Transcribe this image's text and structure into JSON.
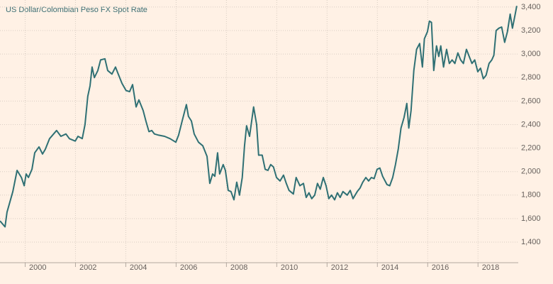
{
  "chart_data": {
    "type": "line",
    "title": "US Dollar/Colombian Peso FX Spot Rate",
    "x": [
      1999.0,
      1999.2,
      1999.28,
      1999.51,
      1999.68,
      1999.85,
      1999.96,
      2000.04,
      2000.13,
      2000.27,
      2000.38,
      2000.55,
      2000.69,
      2000.8,
      2000.97,
      2001.25,
      2001.42,
      2001.62,
      2001.76,
      2001.99,
      2002.1,
      2002.27,
      2002.38,
      2002.49,
      2002.58,
      2002.66,
      2002.75,
      2002.89,
      2003.0,
      2003.17,
      2003.28,
      2003.45,
      2003.59,
      2003.68,
      2003.85,
      2004.01,
      2004.15,
      2004.27,
      2004.41,
      2004.52,
      2004.69,
      2004.8,
      2004.92,
      2005.03,
      2005.14,
      2005.31,
      2005.54,
      2005.76,
      2005.99,
      2006.1,
      2006.24,
      2006.41,
      2006.49,
      2006.61,
      2006.72,
      2006.89,
      2007.06,
      2007.23,
      2007.34,
      2007.45,
      2007.54,
      2007.65,
      2007.73,
      2007.87,
      2007.96,
      2008.07,
      2008.18,
      2008.3,
      2008.41,
      2008.52,
      2008.63,
      2008.72,
      2008.8,
      2008.92,
      2009.08,
      2009.2,
      2009.28,
      2009.42,
      2009.54,
      2009.65,
      2009.76,
      2009.87,
      2009.99,
      2010.13,
      2010.27,
      2010.38,
      2010.49,
      2010.66,
      2010.77,
      2010.92,
      2011.06,
      2011.17,
      2011.28,
      2011.39,
      2011.51,
      2011.62,
      2011.73,
      2011.85,
      2011.96,
      2012.07,
      2012.18,
      2012.3,
      2012.41,
      2012.52,
      2012.63,
      2012.8,
      2012.92,
      2013.03,
      2013.2,
      2013.31,
      2013.42,
      2013.54,
      2013.65,
      2013.76,
      2013.87,
      2013.99,
      2014.1,
      2014.21,
      2014.38,
      2014.49,
      2014.61,
      2014.72,
      2014.83,
      2014.94,
      2015.06,
      2015.17,
      2015.25,
      2015.34,
      2015.45,
      2015.56,
      2015.68,
      2015.79,
      2015.87,
      2015.99,
      2016.07,
      2016.15,
      2016.24,
      2016.35,
      2016.44,
      2016.52,
      2016.63,
      2016.75,
      2016.86,
      2016.97,
      2017.08,
      2017.2,
      2017.31,
      2017.42,
      2017.54,
      2017.65,
      2017.76,
      2017.87,
      2017.99,
      2018.1,
      2018.21,
      2018.32,
      2018.44,
      2018.55,
      2018.63,
      2018.72,
      2018.83,
      2018.94,
      2019.06,
      2019.17,
      2019.28,
      2019.37,
      2019.48,
      2019.54
    ],
    "series": [
      {
        "color": "#2f7074",
        "values": [
          1580,
          1530,
          1655,
          1830,
          2010,
          1950,
          1880,
          1980,
          1950,
          2020,
          2160,
          2210,
          2150,
          2190,
          2280,
          2350,
          2300,
          2320,
          2280,
          2260,
          2300,
          2280,
          2400,
          2640,
          2730,
          2890,
          2800,
          2860,
          2950,
          2960,
          2860,
          2830,
          2890,
          2840,
          2750,
          2690,
          2680,
          2740,
          2550,
          2610,
          2520,
          2430,
          2340,
          2350,
          2320,
          2310,
          2300,
          2280,
          2250,
          2310,
          2430,
          2570,
          2470,
          2430,
          2320,
          2250,
          2220,
          2130,
          1900,
          1980,
          1960,
          2160,
          1980,
          2060,
          2010,
          1840,
          1830,
          1760,
          1910,
          1800,
          1950,
          2220,
          2390,
          2300,
          2550,
          2400,
          2140,
          2140,
          2020,
          2010,
          2060,
          2040,
          1950,
          1920,
          1970,
          1900,
          1840,
          1810,
          1950,
          1880,
          1900,
          1780,
          1820,
          1770,
          1800,
          1900,
          1850,
          1950,
          1880,
          1770,
          1800,
          1760,
          1820,
          1780,
          1830,
          1800,
          1840,
          1770,
          1830,
          1860,
          1910,
          1950,
          1920,
          1950,
          1940,
          2020,
          2030,
          1960,
          1890,
          1880,
          1950,
          2060,
          2190,
          2370,
          2460,
          2580,
          2370,
          2520,
          2860,
          3040,
          3090,
          2890,
          3130,
          3190,
          3280,
          3270,
          2860,
          3070,
          2980,
          3070,
          2890,
          3040,
          2920,
          2950,
          2920,
          3010,
          2950,
          2920,
          3040,
          2980,
          2920,
          2950,
          2850,
          2880,
          2790,
          2820,
          2920,
          2950,
          2990,
          3200,
          3220,
          3230,
          3100,
          3190,
          3340,
          3220,
          3340,
          3410
        ]
      }
    ],
    "xlim": [
      1999.0,
      2019.6
    ],
    "xticks": [
      2000,
      2002,
      2004,
      2006,
      2008,
      2010,
      2012,
      2014,
      2016,
      2018
    ],
    "ylim": [
      1225,
      3460
    ],
    "yticks": [
      {
        "value": 1400,
        "label": "1,400"
      },
      {
        "value": 1600,
        "label": "1,600"
      },
      {
        "value": 1800,
        "label": "1,800"
      },
      {
        "value": 2000,
        "label": "2,000"
      },
      {
        "value": 2200,
        "label": "2,200"
      },
      {
        "value": 2400,
        "label": "2,400"
      },
      {
        "value": 2600,
        "label": "2,600"
      },
      {
        "value": 2800,
        "label": "2,800"
      },
      {
        "value": 3000,
        "label": "3,000"
      },
      {
        "value": 3200,
        "label": "3,200"
      },
      {
        "value": 3400,
        "label": "3,400"
      }
    ],
    "grid": true
  }
}
